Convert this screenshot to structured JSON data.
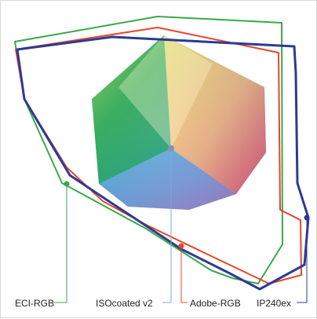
{
  "labels": {
    "eci_rgb": "ECI-RGB",
    "isocoated_v2": "ISOcoated v2",
    "adobe_rgb": "Adobe-RGB",
    "ip240ex": "IP240ex"
  },
  "colors": {
    "eci_rgb": "#3aa84a",
    "isocoated_v2": "#7ea9d6",
    "adobe_rgb": "#e8452a",
    "ip240ex": "#2e3a93",
    "background": "#ffffff",
    "frame": "#d8d8d8"
  }
}
